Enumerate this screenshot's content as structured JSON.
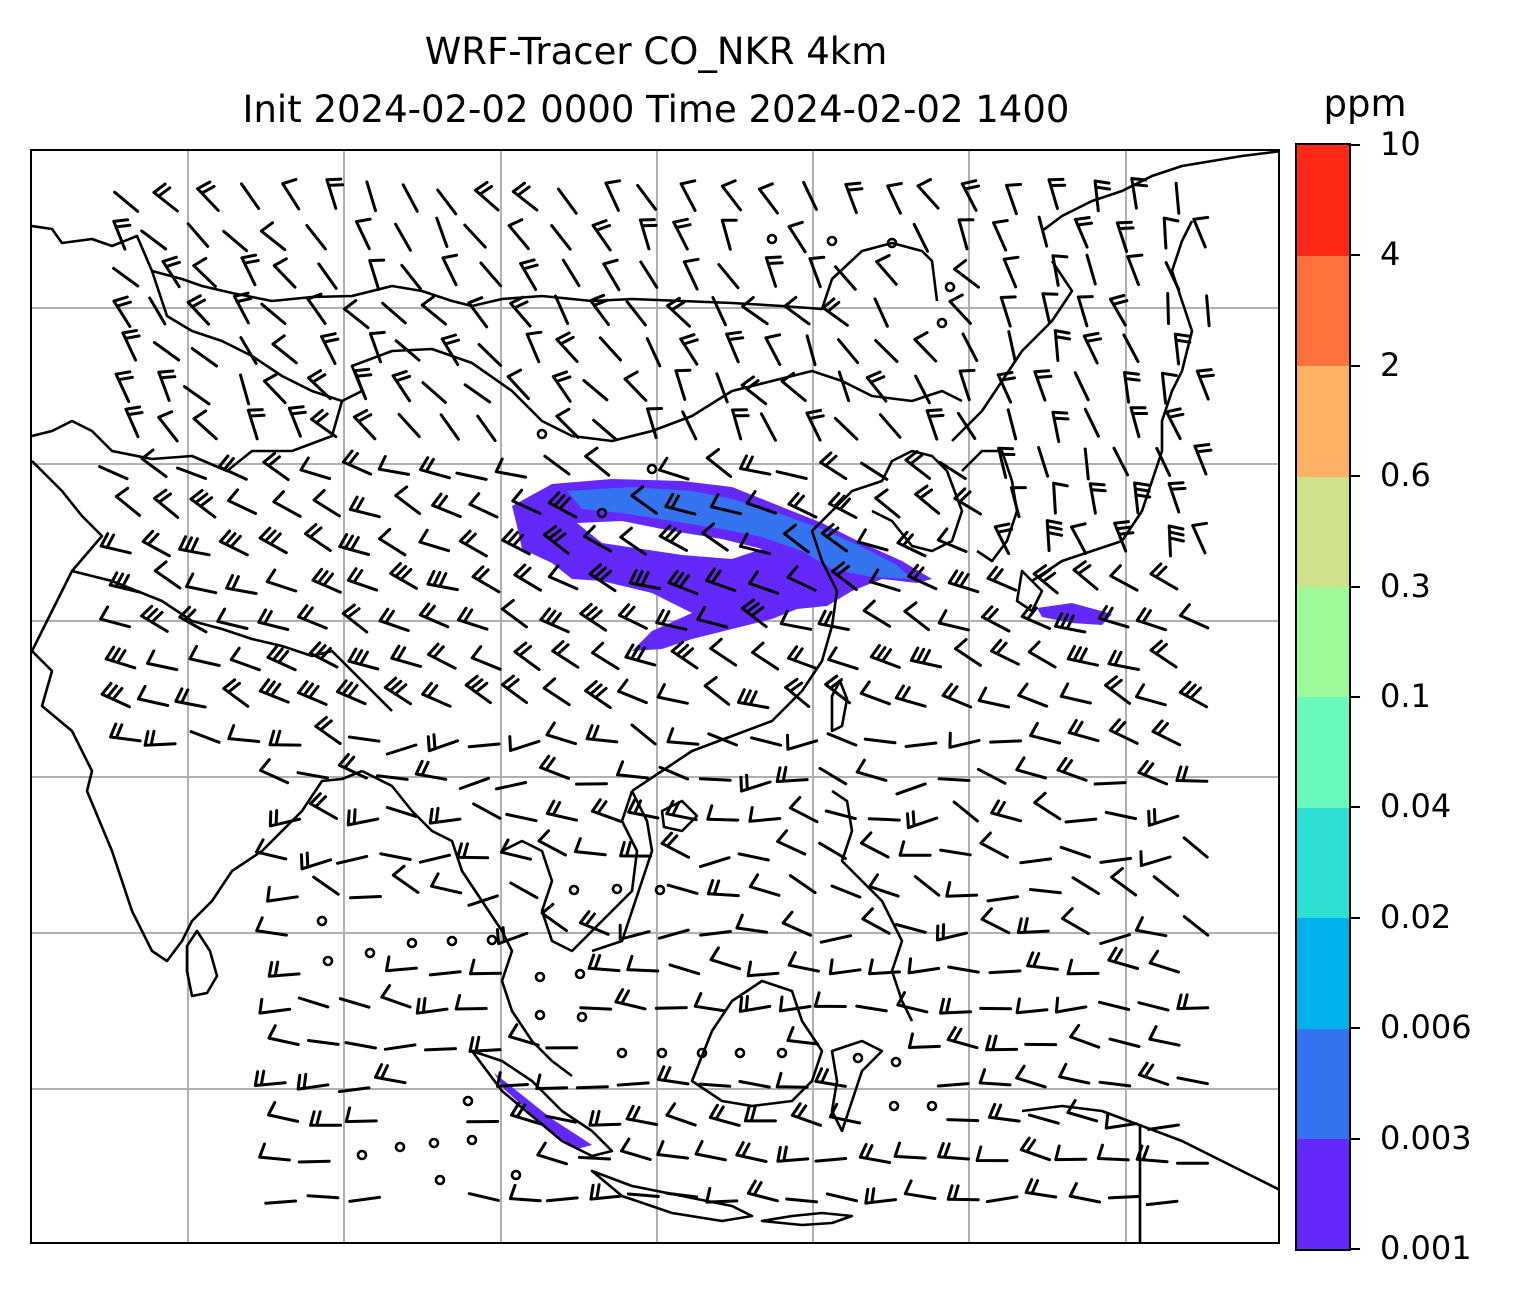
{
  "title": {
    "line1": "WRF-Tracer CO_NKR 4km",
    "line2": "Init 2024-02-02 0000 Time 2024-02-02 1400"
  },
  "colorbar": {
    "unit": "ppm",
    "levels": [
      "0.001",
      "0.003",
      "0.006",
      "0.02",
      "0.04",
      "0.1",
      "0.3",
      "0.6",
      "2",
      "4",
      "10"
    ],
    "colors": [
      "#6528fa",
      "#3574f0",
      "#00b2ec",
      "#2fdfd3",
      "#69fbbd",
      "#9cfa98",
      "#cfe18a",
      "#fcb165",
      "#fe713c",
      "#fe2a17"
    ]
  },
  "map": {
    "grid": "on",
    "coastlines": "on",
    "wind_barbs": "on",
    "tracer_color": "#6528fa",
    "tracer_core_color": "#3574f0"
  }
}
